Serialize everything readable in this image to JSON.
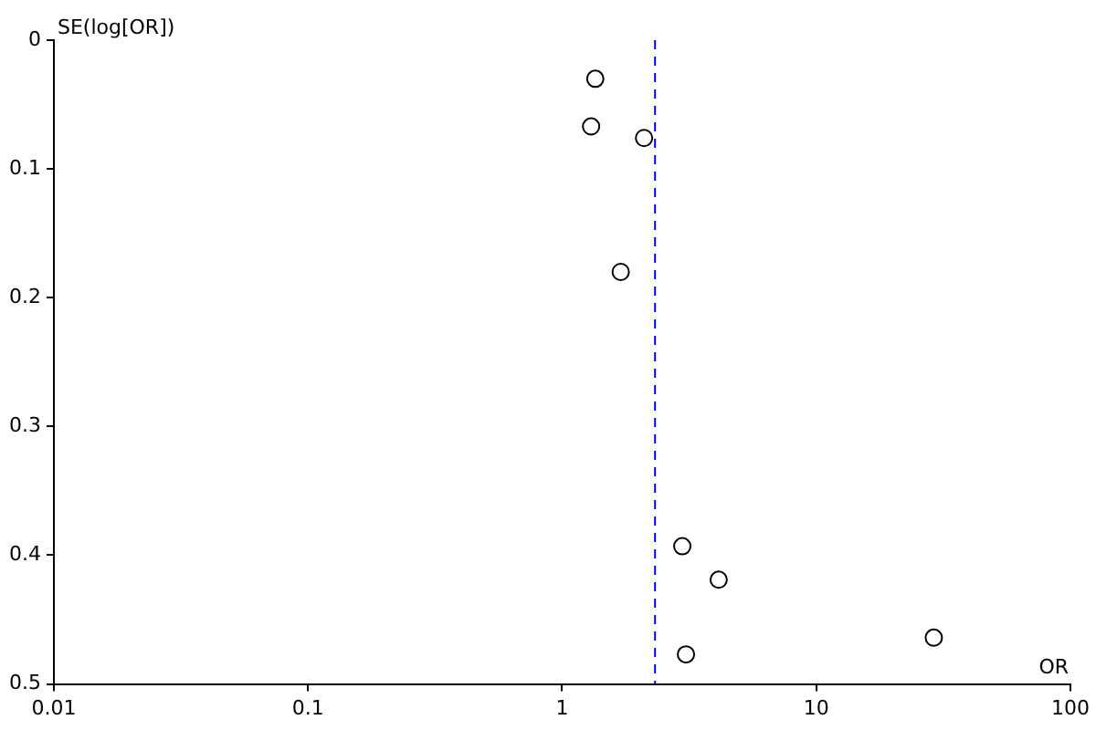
{
  "chart_data": {
    "type": "scatter",
    "xlabel": "OR",
    "ylabel": "SE(log[OR])",
    "log": "x",
    "series": [
      {
        "color": "#000000",
        "x": [
          1.35,
          1.3,
          2.1,
          1.7,
          2.97,
          4.13,
          29,
          3.07
        ],
        "values": [
          0.03,
          0.067,
          0.076,
          0.18,
          0.393,
          0.419,
          0.464,
          0.477
        ]
      }
    ],
    "xlim": [
      0.01,
      100
    ],
    "xticks": [
      0.01,
      0.1,
      1,
      10,
      100
    ],
    "ylim": [
      0.5,
      0
    ],
    "yticks": [
      0,
      0.1,
      0.2,
      0.3,
      0.4,
      0.5
    ],
    "grid": false,
    "legend": false,
    "marker": "circle",
    "ref_lines": [
      {
        "axis": "x",
        "value": 2.32,
        "color": "#0000ff",
        "line_style": "dashed"
      }
    ]
  }
}
